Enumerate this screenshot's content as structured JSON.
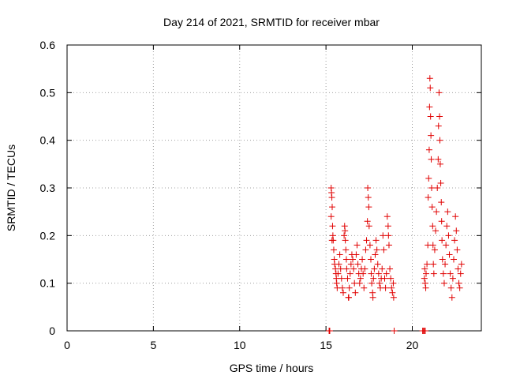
{
  "chart_data": {
    "type": "scatter",
    "title": "Day 214 of 2021, SRMTID for receiver mbar",
    "xlabel": "GPS time / hours",
    "ylabel": "SRMTID / TECUs",
    "xlim": [
      0,
      24
    ],
    "ylim": [
      0,
      0.6
    ],
    "xticks": [
      "0",
      "5",
      "10",
      "15",
      "20"
    ],
    "yticks": [
      "0",
      "0.1",
      "0.2",
      "0.3",
      "0.4",
      "0.5",
      "0.6"
    ],
    "grid": true,
    "marker": "plus",
    "color": "#e00000",
    "series": [
      {
        "points": [
          [
            15.18,
            0.0
          ],
          [
            15.2,
            0.0
          ],
          [
            15.22,
            0.0
          ],
          [
            18.95,
            0.0
          ],
          [
            20.6,
            0.0
          ],
          [
            20.65,
            0.0
          ],
          [
            20.7,
            0.0
          ],
          [
            20.75,
            0.0
          ],
          [
            15.3,
            0.3
          ],
          [
            15.32,
            0.29
          ],
          [
            15.34,
            0.28
          ],
          [
            15.36,
            0.26
          ],
          [
            15.3,
            0.24
          ],
          [
            15.38,
            0.22
          ],
          [
            15.4,
            0.2
          ],
          [
            15.42,
            0.19
          ],
          [
            15.35,
            0.19
          ],
          [
            15.45,
            0.17
          ],
          [
            15.48,
            0.15
          ],
          [
            15.5,
            0.14
          ],
          [
            15.55,
            0.13
          ],
          [
            15.58,
            0.12
          ],
          [
            15.6,
            0.11
          ],
          [
            15.62,
            0.1
          ],
          [
            15.65,
            0.09
          ],
          [
            15.7,
            0.12
          ],
          [
            15.75,
            0.14
          ],
          [
            15.8,
            0.16
          ],
          [
            15.85,
            0.13
          ],
          [
            15.9,
            0.11
          ],
          [
            15.95,
            0.09
          ],
          [
            16.0,
            0.08
          ],
          [
            16.05,
            0.2
          ],
          [
            16.08,
            0.22
          ],
          [
            16.1,
            0.21
          ],
          [
            16.12,
            0.19
          ],
          [
            16.15,
            0.17
          ],
          [
            16.18,
            0.15
          ],
          [
            16.2,
            0.13
          ],
          [
            16.25,
            0.11
          ],
          [
            16.3,
            0.07
          ],
          [
            16.32,
            0.07
          ],
          [
            16.35,
            0.09
          ],
          [
            16.4,
            0.12
          ],
          [
            16.45,
            0.14
          ],
          [
            16.5,
            0.16
          ],
          [
            16.55,
            0.15
          ],
          [
            16.6,
            0.13
          ],
          [
            16.65,
            0.1
          ],
          [
            16.7,
            0.08
          ],
          [
            16.75,
            0.16
          ],
          [
            16.8,
            0.18
          ],
          [
            16.85,
            0.14
          ],
          [
            16.9,
            0.12
          ],
          [
            16.95,
            0.1
          ],
          [
            17.0,
            0.11
          ],
          [
            17.05,
            0.13
          ],
          [
            17.1,
            0.15
          ],
          [
            17.15,
            0.12
          ],
          [
            17.2,
            0.09
          ],
          [
            17.25,
            0.13
          ],
          [
            17.3,
            0.17
          ],
          [
            17.35,
            0.19
          ],
          [
            17.4,
            0.23
          ],
          [
            17.42,
            0.3
          ],
          [
            17.45,
            0.28
          ],
          [
            17.48,
            0.26
          ],
          [
            17.5,
            0.22
          ],
          [
            17.55,
            0.18
          ],
          [
            17.6,
            0.15
          ],
          [
            17.62,
            0.12
          ],
          [
            17.65,
            0.1
          ],
          [
            17.7,
            0.08
          ],
          [
            17.72,
            0.07
          ],
          [
            17.75,
            0.11
          ],
          [
            17.8,
            0.13
          ],
          [
            17.85,
            0.16
          ],
          [
            17.9,
            0.19
          ],
          [
            17.95,
            0.17
          ],
          [
            18.0,
            0.14
          ],
          [
            18.05,
            0.12
          ],
          [
            18.1,
            0.1
          ],
          [
            18.15,
            0.09
          ],
          [
            18.2,
            0.11
          ],
          [
            18.25,
            0.13
          ],
          [
            18.3,
            0.2
          ],
          [
            18.35,
            0.17
          ],
          [
            18.4,
            0.11
          ],
          [
            18.45,
            0.09
          ],
          [
            18.5,
            0.12
          ],
          [
            18.55,
            0.24
          ],
          [
            18.6,
            0.22
          ],
          [
            18.62,
            0.2
          ],
          [
            18.65,
            0.18
          ],
          [
            18.7,
            0.13
          ],
          [
            18.75,
            0.11
          ],
          [
            18.8,
            0.09
          ],
          [
            18.85,
            0.08
          ],
          [
            18.9,
            0.1
          ],
          [
            18.92,
            0.07
          ],
          [
            20.7,
            0.11
          ],
          [
            20.72,
            0.13
          ],
          [
            20.75,
            0.1
          ],
          [
            20.78,
            0.09
          ],
          [
            20.8,
            0.12
          ],
          [
            20.85,
            0.14
          ],
          [
            20.9,
            0.18
          ],
          [
            20.92,
            0.28
          ],
          [
            20.95,
            0.32
          ],
          [
            20.98,
            0.38
          ],
          [
            21.0,
            0.47
          ],
          [
            21.02,
            0.53
          ],
          [
            21.04,
            0.51
          ],
          [
            21.06,
            0.45
          ],
          [
            21.08,
            0.41
          ],
          [
            21.1,
            0.36
          ],
          [
            21.12,
            0.3
          ],
          [
            21.15,
            0.26
          ],
          [
            21.18,
            0.22
          ],
          [
            21.2,
            0.18
          ],
          [
            21.22,
            0.14
          ],
          [
            21.25,
            0.12
          ],
          [
            21.3,
            0.17
          ],
          [
            21.35,
            0.21
          ],
          [
            21.4,
            0.25
          ],
          [
            21.45,
            0.3
          ],
          [
            21.5,
            0.36
          ],
          [
            21.52,
            0.43
          ],
          [
            21.55,
            0.5
          ],
          [
            21.58,
            0.45
          ],
          [
            21.6,
            0.4
          ],
          [
            21.62,
            0.35
          ],
          [
            21.65,
            0.31
          ],
          [
            21.68,
            0.27
          ],
          [
            21.7,
            0.23
          ],
          [
            21.72,
            0.19
          ],
          [
            21.75,
            0.15
          ],
          [
            21.8,
            0.12
          ],
          [
            21.85,
            0.1
          ],
          [
            21.9,
            0.14
          ],
          [
            21.95,
            0.18
          ],
          [
            22.0,
            0.22
          ],
          [
            22.05,
            0.25
          ],
          [
            22.1,
            0.2
          ],
          [
            22.15,
            0.16
          ],
          [
            22.2,
            0.12
          ],
          [
            22.25,
            0.09
          ],
          [
            22.3,
            0.07
          ],
          [
            22.35,
            0.11
          ],
          [
            22.4,
            0.15
          ],
          [
            22.45,
            0.19
          ],
          [
            22.5,
            0.24
          ],
          [
            22.55,
            0.21
          ],
          [
            22.6,
            0.17
          ],
          [
            22.65,
            0.13
          ],
          [
            22.7,
            0.1
          ],
          [
            22.75,
            0.09
          ],
          [
            22.8,
            0.12
          ],
          [
            22.85,
            0.14
          ]
        ]
      }
    ]
  }
}
